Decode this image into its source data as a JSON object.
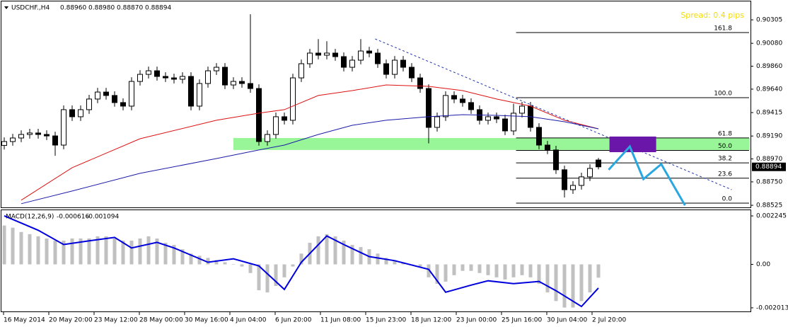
{
  "chart_data": {
    "type": "candlestick",
    "header": {
      "symbol": "USDCHF.,H4",
      "ohlc": [
        "0.88960",
        "0.88980",
        "0.88870",
        "0.88894"
      ]
    },
    "spread": "Spread: 0.4 pips",
    "current_price": "0.88894",
    "ylim": [
      0.88505,
      0.90482
    ],
    "yticks": [
      0.90305,
      {
        "value": 0.9008,
        "label": "0.90080"
      },
      {
        "value": 0.8986,
        "label": "0.89860"
      },
      {
        "value": 0.8964,
        "label": "0.89640"
      },
      0.89415,
      {
        "value": 0.8919,
        "label": "0.89190"
      },
      {
        "value": 0.8897,
        "label": "0.88970"
      },
      {
        "value": 0.8875,
        "label": "0.88750"
      },
      0.88525
    ],
    "x_labels": [
      "16 May 2014",
      "20 May 20:00",
      "23 May 12:00",
      "28 May 00:00",
      "30 May 16:00",
      "4 Jun 04:00",
      "6 Jun 20:00",
      "11 Jun 08:00",
      "15 Jun 23:00",
      "18 Jun 12:00",
      "23 Jun 00:00",
      "25 Jun 16:00",
      "30 Jun 04:00",
      "2 Jul 20:00"
    ],
    "up_color": "#ffffff",
    "down_color": "#000000",
    "candles": {
      "open": [
        0.891,
        0.89137,
        0.89171,
        0.89205,
        0.89219,
        0.89205,
        0.89191,
        0.89103,
        0.89443,
        0.89375,
        0.89443,
        0.89545,
        0.89612,
        0.89579,
        0.89511,
        0.89477,
        0.89714,
        0.89782,
        0.89816,
        0.89762,
        0.89748,
        0.89735,
        0.89762,
        0.89477,
        0.89694,
        0.89816,
        0.8985,
        0.8968,
        0.89714,
        0.89694,
        0.89646,
        0.89137,
        0.89205,
        0.89375,
        0.89341,
        0.89748,
        0.89884,
        0.89986,
        0.89966,
        0.89986,
        0.89952,
        0.8985,
        0.89918,
        0.90006,
        0.89986,
        0.89884,
        0.89782,
        0.89918,
        0.8985,
        0.89748,
        0.89646,
        0.89273,
        0.89375,
        0.89579,
        0.89545,
        0.89511,
        0.89443,
        0.89341,
        0.89375,
        0.89354,
        0.89239,
        0.89409,
        0.89477,
        0.89273,
        0.89103,
        0.89056,
        0.88866,
        0.88675,
        0.88716,
        0.88798,
        0.8896
      ],
      "high": [
        0.89177,
        0.89211,
        0.89245,
        0.89259,
        0.89259,
        0.89245,
        0.89231,
        0.89483,
        0.89483,
        0.89483,
        0.89585,
        0.89652,
        0.89652,
        0.89619,
        0.89551,
        0.89754,
        0.89822,
        0.89856,
        0.89856,
        0.89802,
        0.89788,
        0.89802,
        0.89802,
        0.89734,
        0.89856,
        0.8989,
        0.8989,
        0.89754,
        0.89754,
        0.90359,
        0.89686,
        0.89245,
        0.89415,
        0.89415,
        0.89788,
        0.89924,
        0.90026,
        0.9012,
        0.901,
        0.90026,
        0.89992,
        0.89958,
        0.9012,
        0.90046,
        0.90026,
        0.89924,
        0.89958,
        0.89958,
        0.8989,
        0.89788,
        0.89686,
        0.89415,
        0.89619,
        0.89619,
        0.89585,
        0.89551,
        0.89483,
        0.89415,
        0.89415,
        0.89394,
        0.895,
        0.89517,
        0.89517,
        0.89313,
        0.89143,
        0.89096,
        0.88906,
        0.88756,
        0.88838,
        0.88919,
        0.8898
      ],
      "low": [
        0.8906,
        0.89097,
        0.89131,
        0.89165,
        0.89165,
        0.89151,
        0.89,
        0.89063,
        0.89335,
        0.89335,
        0.89403,
        0.89505,
        0.89539,
        0.89471,
        0.89437,
        0.89437,
        0.89674,
        0.89742,
        0.89722,
        0.89708,
        0.89695,
        0.89695,
        0.89437,
        0.89437,
        0.89654,
        0.89776,
        0.8964,
        0.8964,
        0.89654,
        0.89606,
        0.89097,
        0.89097,
        0.89165,
        0.89301,
        0.89301,
        0.89708,
        0.89844,
        0.89926,
        0.89926,
        0.89912,
        0.8981,
        0.8981,
        0.89878,
        0.89946,
        0.89844,
        0.89742,
        0.89742,
        0.8981,
        0.89708,
        0.89606,
        0.8912,
        0.89233,
        0.89335,
        0.89505,
        0.89471,
        0.89403,
        0.89301,
        0.89301,
        0.89314,
        0.89199,
        0.89199,
        0.89369,
        0.89233,
        0.89063,
        0.89016,
        0.88826,
        0.886,
        0.88635,
        0.88676,
        0.88758,
        0.8887
      ],
      "close": [
        0.89137,
        0.89171,
        0.89205,
        0.89219,
        0.89205,
        0.89191,
        0.89103,
        0.89443,
        0.89375,
        0.89443,
        0.89545,
        0.89612,
        0.89579,
        0.89511,
        0.89477,
        0.89714,
        0.89782,
        0.89816,
        0.89762,
        0.89748,
        0.89735,
        0.89762,
        0.89477,
        0.89694,
        0.89816,
        0.8985,
        0.8968,
        0.89714,
        0.89694,
        0.89646,
        0.89137,
        0.89205,
        0.89375,
        0.89341,
        0.89748,
        0.89884,
        0.89986,
        0.89966,
        0.89986,
        0.89952,
        0.8985,
        0.89918,
        0.90006,
        0.89986,
        0.89884,
        0.89782,
        0.89918,
        0.8985,
        0.89748,
        0.89646,
        0.89273,
        0.89375,
        0.89579,
        0.89545,
        0.89511,
        0.89443,
        0.89341,
        0.89375,
        0.89354,
        0.89239,
        0.89409,
        0.89477,
        0.89273,
        0.89103,
        0.89056,
        0.88866,
        0.88675,
        0.88716,
        0.88798,
        0.88879,
        0.88894
      ]
    },
    "moving_averages": [
      {
        "color": "#dd1111",
        "x": [
          2,
          8,
          16,
          25,
          30,
          33,
          37,
          41,
          45,
          50,
          54,
          58,
          62,
          66,
          70
        ],
        "values": [
          0.88574,
          0.88886,
          0.89164,
          0.89341,
          0.89409,
          0.89443,
          0.89579,
          0.89626,
          0.8968,
          0.89667,
          0.89626,
          0.89545,
          0.89477,
          0.89341,
          0.89259
        ]
      },
      {
        "color": "#1c1ca8",
        "x": [
          2,
          8,
          16,
          25,
          30,
          33,
          37,
          41,
          45,
          50,
          54,
          58,
          62,
          66,
          70
        ],
        "values": [
          0.8854,
          0.88662,
          0.88832,
          0.88974,
          0.89056,
          0.89103,
          0.89205,
          0.89293,
          0.89341,
          0.89375,
          0.89395,
          0.89388,
          0.89375,
          0.89327,
          0.89259
        ]
      }
    ],
    "zone": {
      "color": "#98f598",
      "top": 0.89171,
      "bottom": 0.89056
    },
    "box": {
      "color": "#6a16a8",
      "x": [
        71.3,
        76.8
      ],
      "top": 0.89185,
      "bottom": 0.89035
    },
    "trendline": {
      "color": "#2233aa",
      "x": [
        43.7,
        85.7
      ],
      "values": [
        0.90122,
        0.88675
      ]
    },
    "projection": {
      "color": "#2aa6e0",
      "x": [
        71.2,
        73.7,
        75.3,
        77.4,
        80.2
      ],
      "values": [
        0.88866,
        0.89089,
        0.88777,
        0.8892,
        0.88525
      ]
    },
    "fib": {
      "low": 0.88546,
      "high": 0.89558,
      "start_x": 60.3,
      "levels": [
        {
          "value": 161.8,
          "label": "161.8"
        },
        {
          "value": 100,
          "label": "100.0"
        },
        61.8,
        {
          "value": 50,
          "label": "50.0"
        },
        38.2,
        23.6,
        {
          "value": 0,
          "label": "0.0"
        }
      ]
    },
    "macd": {
      "label": "MACD(12,26,9)",
      "readings": [
        "-0.000616",
        "-0.001094"
      ],
      "ylim": [
        -0.00218,
        0.002509
      ],
      "yticks": [
        0.002245,
        {
          "value": 0,
          "label": "0.00"
        },
        -0.002013
      ],
      "hist_color": "#c0c0c0",
      "signal_color": "#0000dd",
      "histogram": [
        0.0018,
        0.0017,
        0.0015,
        0.0014,
        0.0013,
        0.0012,
        0.0011,
        0.0011,
        0.0012,
        0.0012,
        0.0012,
        0.0013,
        0.0013,
        0.0012,
        0.0011,
        0.0011,
        0.0012,
        0.0013,
        0.0012,
        0.001,
        0.0009,
        0.0007,
        0.0005,
        0.0004,
        0.0003,
        0.0002,
        0.0001,
        0,
        -0.0001,
        -0.0004,
        -0.0012,
        -0.0013,
        -0.001,
        -0.0006,
        -0.0001,
        0.0005,
        0.001,
        0.0013,
        0.0014,
        0.0013,
        0.0011,
        0.0009,
        0.0008,
        0.0007,
        0.0005,
        0.0003,
        0.0002,
        0.0001,
        0,
        -0.0001,
        -0.0006,
        -0.0009,
        -0.0008,
        -0.0005,
        -0.0003,
        -0.0003,
        -0.0004,
        -0.0005,
        -0.0006,
        -0.0007,
        -0.0006,
        -0.0005,
        -0.0006,
        -0.0009,
        -0.0013,
        -0.0017,
        -0.002,
        -0.002,
        -0.0017,
        -0.0013,
        -0.000616
      ],
      "signal_x": [
        0,
        4,
        7,
        10,
        13,
        15,
        18,
        20,
        24,
        27,
        30,
        33,
        35,
        38,
        40,
        43,
        46,
        50,
        52,
        55,
        57,
        60,
        63,
        65,
        68,
        70
      ],
      "signal": [
        0.00225,
        0.00158,
        0.00092,
        0.00109,
        0.00125,
        0.00076,
        0.00102,
        0.00076,
        0.0001,
        0.00026,
        -7e-05,
        -0.00116,
        0.0001,
        0.00132,
        0.00092,
        0.00036,
        0.00017,
        -0.00023,
        -0.00129,
        -0.00096,
        -0.00076,
        -0.00089,
        -0.00079,
        -0.00122,
        -0.00195,
        -0.001094
      ]
    }
  }
}
